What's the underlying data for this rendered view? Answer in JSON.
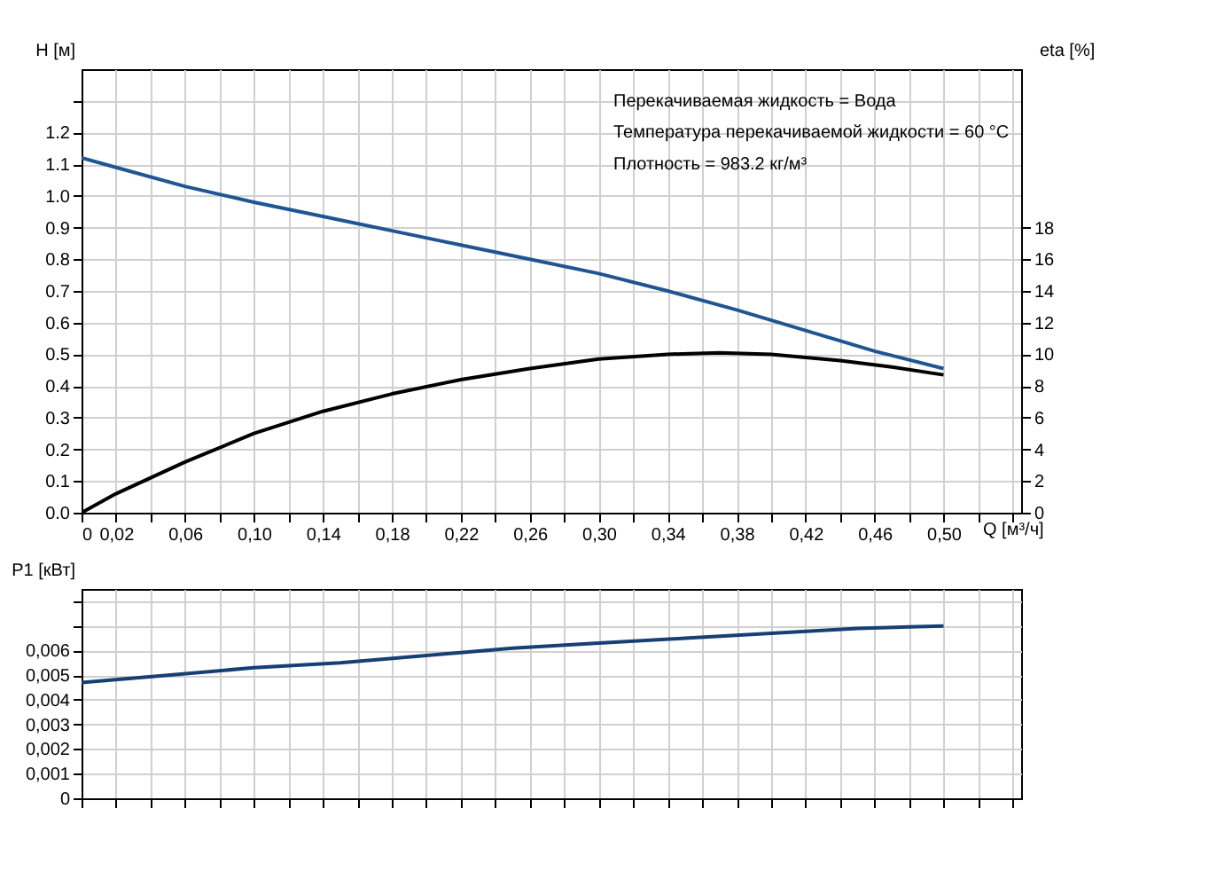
{
  "chart_data": [
    {
      "type": "line",
      "xlabel": "Q [м³/ч]",
      "ylabel": "H [м]",
      "y2label": "eta [%]",
      "grid": true,
      "annotations": [
        "Перекачиваемая жидкость = Вода",
        "Температура перекачиваемой жидкости = 60 °C",
        "Плотность = 983.2 кг/м³"
      ],
      "xlim": [
        0,
        0.545
      ],
      "xticks": [
        0,
        {
          "value": 0.02,
          "label": "0,02"
        },
        {
          "value": 0.04,
          "label": null
        },
        {
          "value": 0.06,
          "label": "0,06"
        },
        {
          "value": 0.08,
          "label": null
        },
        {
          "value": 0.1,
          "label": "0,10"
        },
        {
          "value": 0.12,
          "label": null
        },
        {
          "value": 0.14,
          "label": "0,14"
        },
        {
          "value": 0.16,
          "label": null
        },
        {
          "value": 0.18,
          "label": "0,18"
        },
        {
          "value": 0.2,
          "label": null
        },
        {
          "value": 0.22,
          "label": "0,22"
        },
        {
          "value": 0.24,
          "label": null
        },
        {
          "value": 0.26,
          "label": "0,26"
        },
        {
          "value": 0.28,
          "label": null
        },
        {
          "value": 0.3,
          "label": "0,30"
        },
        {
          "value": 0.32,
          "label": null
        },
        {
          "value": 0.34,
          "label": "0,34"
        },
        {
          "value": 0.36,
          "label": null
        },
        {
          "value": 0.38,
          "label": "0,38"
        },
        {
          "value": 0.4,
          "label": null
        },
        {
          "value": 0.42,
          "label": "0,42"
        },
        {
          "value": 0.44,
          "label": null
        },
        {
          "value": 0.46,
          "label": "0,46"
        },
        {
          "value": 0.48,
          "label": null
        },
        {
          "value": 0.5,
          "label": "0,50"
        },
        {
          "value": 0.52,
          "label": null
        },
        {
          "value": 0.54,
          "label": null
        }
      ],
      "ylim": [
        0,
        1.4
      ],
      "yticks": [
        {
          "value": 0,
          "label": "0.0"
        },
        0.1,
        0.2,
        0.3,
        0.4,
        0.5,
        0.6,
        0.7,
        0.8,
        0.9,
        {
          "value": 1,
          "label": "1.0"
        },
        1.1,
        1.2,
        {
          "value": 1.3,
          "label": null
        }
      ],
      "y2lim": [
        0,
        28
      ],
      "y2ticks": [
        0,
        2,
        4,
        6,
        8,
        10,
        12,
        14,
        16,
        18
      ],
      "series": [
        {
          "color": "#1f5592",
          "x": [
            0,
            0.02,
            0.06,
            0.1,
            0.14,
            0.18,
            0.22,
            0.26,
            0.3,
            0.34,
            0.38,
            0.42,
            0.46,
            0.5
          ],
          "values": [
            1.12,
            1.09,
            1.03,
            0.98,
            0.935,
            0.89,
            0.845,
            0.8,
            0.755,
            0.7,
            0.64,
            0.575,
            0.51,
            0.455
          ]
        },
        {
          "color": "#000000",
          "axis": "y2",
          "x": [
            0,
            0.02,
            0.06,
            0.1,
            0.14,
            0.18,
            0.22,
            0.26,
            0.3,
            0.34,
            0.37,
            0.4,
            0.44,
            0.47,
            0.5
          ],
          "values": [
            0,
            1.2,
            3.2,
            5.0,
            6.4,
            7.5,
            8.4,
            9.1,
            9.7,
            10.0,
            10.1,
            10.0,
            9.6,
            9.2,
            8.7
          ]
        }
      ]
    },
    {
      "type": "line",
      "ylabel": "P1 [кВт]",
      "grid": true,
      "tick_labels": "y",
      "xlim": [
        0,
        0.545
      ],
      "xticks": [
        0,
        0.02,
        0.04,
        0.06,
        0.08,
        0.1,
        0.12,
        0.14,
        0.16,
        0.18,
        0.2,
        0.22,
        0.24,
        0.26,
        0.28,
        0.3,
        0.32,
        0.34,
        0.36,
        0.38,
        0.4,
        0.42,
        0.44,
        0.46,
        0.48,
        0.5,
        0.52,
        0.54
      ],
      "ylim": [
        0,
        0.0085
      ],
      "yticks": [
        0,
        {
          "value": 0.001,
          "label": "0,001"
        },
        {
          "value": 0.002,
          "label": "0,002"
        },
        {
          "value": 0.003,
          "label": "0,003"
        },
        {
          "value": 0.004,
          "label": "0,004"
        },
        {
          "value": 0.005,
          "label": "0,005"
        },
        {
          "value": 0.006,
          "label": "0,006"
        },
        {
          "value": 0.007,
          "label": null
        },
        {
          "value": 0.008,
          "label": null
        }
      ],
      "series": [
        {
          "color": "#163f73",
          "x": [
            0,
            0.05,
            0.1,
            0.15,
            0.2,
            0.25,
            0.3,
            0.35,
            0.4,
            0.45,
            0.5
          ],
          "values": [
            0.0047,
            0.005,
            0.0053,
            0.0055,
            0.0058,
            0.0061,
            0.0063,
            0.0065,
            0.0067,
            0.0069,
            0.007
          ]
        }
      ]
    }
  ]
}
